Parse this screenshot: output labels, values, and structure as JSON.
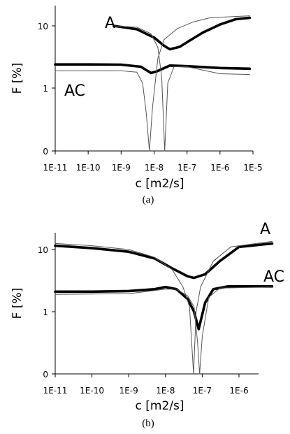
{
  "chart_data": [
    {
      "type": "line",
      "caption": "(a)",
      "xlabel": "c [m2/s]",
      "ylabel": "F [%]",
      "x_scale": "log",
      "y_scale": "log-with-zero",
      "xlim": [
        1e-11,
        1e-05
      ],
      "x_ticks": [
        "1E-11",
        "1E-10",
        "1E-9",
        "1E-8",
        "1E-7",
        "1E-6",
        "1E-5"
      ],
      "y_ticks": [
        "0",
        "1",
        "10"
      ],
      "series": [
        {
          "name": "A",
          "style": "thick",
          "points": [
            [
              6e-10,
              10
            ],
            [
              3e-09,
              8.8
            ],
            [
              1e-08,
              6.5
            ],
            [
              2e-08,
              4.8
            ],
            [
              3e-08,
              4.2
            ],
            [
              6e-08,
              4.6
            ],
            [
              1.2e-07,
              5.8
            ],
            [
              3e-07,
              7.8
            ],
            [
              1e-06,
              10.5
            ],
            [
              3e-06,
              12.8
            ],
            [
              8e-06,
              13.5
            ]
          ]
        },
        {
          "name": "AC",
          "style": "thick",
          "points": [
            [
              1e-11,
              2.4
            ],
            [
              1e-10,
              2.4
            ],
            [
              1e-09,
              2.38
            ],
            [
              4e-09,
              2.2
            ],
            [
              8e-09,
              1.75
            ],
            [
              1.2e-08,
              1.85
            ],
            [
              3e-08,
              2.3
            ],
            [
              1e-07,
              2.25
            ],
            [
              1e-06,
              2.1
            ],
            [
              8e-06,
              2.05
            ]
          ]
        },
        {
          "name": "",
          "style": "thin",
          "points": [
            [
              1e-11,
              1.9
            ],
            [
              1e-09,
              1.9
            ],
            [
              3e-09,
              1.8
            ],
            [
              4.5e-09,
              1.2
            ],
            [
              5.8e-09,
              0.6
            ],
            [
              7.2e-09,
              0
            ],
            [
              9e-09,
              0.7
            ],
            [
              1.3e-08,
              3.0
            ],
            [
              2e-08,
              6.0
            ],
            [
              5e-08,
              9.0
            ],
            [
              1.5e-07,
              11.5
            ],
            [
              5e-07,
              13.5
            ],
            [
              8e-06,
              14.5
            ]
          ]
        },
        {
          "name": "",
          "style": "thin",
          "points": [
            [
              6e-10,
              10
            ],
            [
              3e-09,
              9.5
            ],
            [
              8e-09,
              7.5
            ],
            [
              1.3e-08,
              4.5
            ],
            [
              1.7e-08,
              1.5
            ],
            [
              2.1e-08,
              0
            ],
            [
              2.6e-08,
              1.2
            ],
            [
              4e-08,
              2.2
            ],
            [
              1e-07,
              2.2
            ],
            [
              1e-06,
              1.7
            ],
            [
              8e-06,
              1.65
            ]
          ]
        }
      ],
      "annotations": [
        "A",
        "AC"
      ]
    },
    {
      "type": "line",
      "caption": "(b)",
      "xlabel": "c [m2/s]",
      "ylabel": "F [%]",
      "x_scale": "log",
      "y_scale": "log-with-zero",
      "xlim": [
        1e-11,
        1e-05
      ],
      "x_ticks": [
        "1E-11",
        "1E-10",
        "1E-9",
        "1E-8",
        "1E-7",
        "1E-6"
      ],
      "y_ticks": [
        "0",
        "1",
        "10"
      ],
      "series": [
        {
          "name": "A",
          "style": "thick",
          "points": [
            [
              1e-11,
              11.5
            ],
            [
              1e-10,
              10.5
            ],
            [
              1e-09,
              9.2
            ],
            [
              5e-09,
              7.2
            ],
            [
              1.5e-08,
              5.0
            ],
            [
              4e-08,
              3.7
            ],
            [
              6e-08,
              3.5
            ],
            [
              1.2e-07,
              4.0
            ],
            [
              3e-07,
              6.5
            ],
            [
              1e-06,
              11.0
            ],
            [
              8e-06,
              12.5
            ]
          ]
        },
        {
          "name": "AC",
          "style": "thick",
          "points": [
            [
              1e-11,
              2.1
            ],
            [
              1e-10,
              2.1
            ],
            [
              1e-09,
              2.15
            ],
            [
              5e-09,
              2.3
            ],
            [
              1e-08,
              2.5
            ],
            [
              2e-08,
              2.3
            ],
            [
              4e-08,
              1.6
            ],
            [
              6e-08,
              1.0
            ],
            [
              8e-08,
              0.72
            ],
            [
              1.2e-07,
              1.4
            ],
            [
              2e-07,
              2.3
            ],
            [
              5e-07,
              2.55
            ],
            [
              8e-06,
              2.55
            ]
          ]
        },
        {
          "name": "",
          "style": "thin",
          "points": [
            [
              1e-11,
              12.5
            ],
            [
              1e-10,
              11.5
            ],
            [
              1e-09,
              10
            ],
            [
              5e-09,
              7.5
            ],
            [
              1.5e-08,
              4.8
            ],
            [
              3e-08,
              2.5
            ],
            [
              4.5e-08,
              1.2
            ],
            [
              5.8e-08,
              0
            ],
            [
              6.8e-08,
              1.0
            ],
            [
              9e-08,
              2.5
            ],
            [
              2e-07,
              6.5
            ],
            [
              6e-07,
              11
            ],
            [
              8e-06,
              13.5
            ]
          ]
        },
        {
          "name": "",
          "style": "thin",
          "points": [
            [
              1e-11,
              1.9
            ],
            [
              1e-09,
              1.95
            ],
            [
              1e-08,
              2.3
            ],
            [
              2e-08,
              2.3
            ],
            [
              4e-08,
              1.8
            ],
            [
              6e-08,
              1.2
            ],
            [
              7.5e-08,
              0.5
            ],
            [
              8.5e-08,
              0
            ],
            [
              1e-07,
              0.6
            ],
            [
              1.5e-07,
              1.7
            ],
            [
              3e-07,
              2.4
            ],
            [
              8e-06,
              2.5
            ]
          ]
        }
      ],
      "annotations": [
        "A",
        "AC"
      ]
    }
  ]
}
